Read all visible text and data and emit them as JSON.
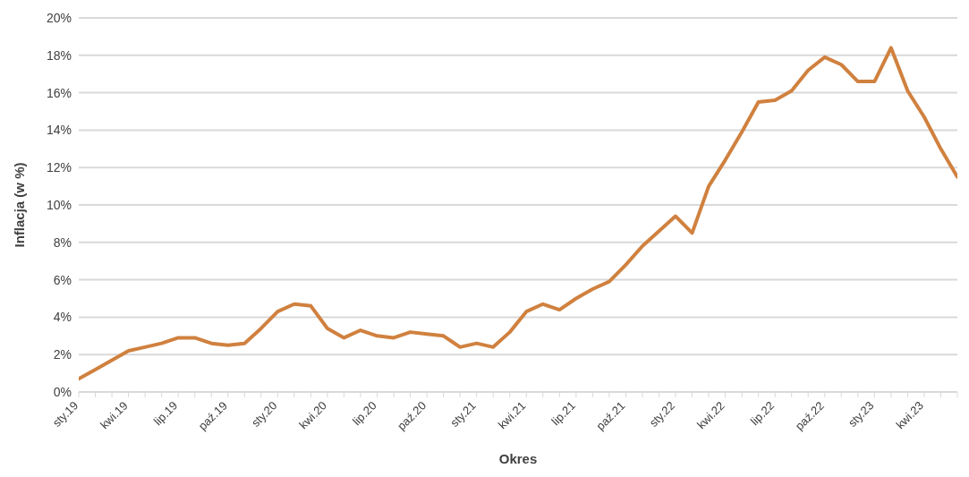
{
  "chart_data": {
    "type": "line",
    "xlabel": "Okres",
    "ylabel": "Inflacja (w %)",
    "categories": [
      "sty.19",
      null,
      null,
      "kwi.19",
      null,
      null,
      "lip.19",
      null,
      null,
      "paź.19",
      null,
      null,
      "sty.20",
      null,
      null,
      "kwi.20",
      null,
      null,
      "lip.20",
      null,
      null,
      "paź.20",
      null,
      null,
      "sty.21",
      null,
      null,
      "kwi.21",
      null,
      null,
      "lip.21",
      null,
      null,
      "paź.21",
      null,
      null,
      "sty.22",
      null,
      null,
      "kwi.22",
      null,
      null,
      "lip.22",
      null,
      null,
      "paź.22",
      null,
      null,
      "sty.23",
      null,
      null,
      "kwi.23",
      null,
      null
    ],
    "series": [
      {
        "color": "#d0813f",
        "values": [
          0.7,
          1.2,
          1.7,
          2.2,
          2.4,
          2.6,
          2.9,
          2.9,
          2.6,
          2.5,
          2.6,
          3.4,
          4.3,
          4.7,
          4.6,
          3.4,
          2.9,
          3.3,
          3.0,
          2.9,
          3.2,
          3.1,
          3.0,
          2.4,
          2.6,
          2.4,
          3.2,
          4.3,
          4.7,
          4.4,
          5.0,
          5.5,
          5.9,
          6.8,
          7.8,
          8.6,
          9.4,
          8.5,
          11.0,
          12.4,
          13.9,
          15.5,
          15.6,
          16.1,
          17.2,
          17.9,
          17.5,
          16.6,
          16.6,
          18.4,
          16.1,
          14.7,
          13.0,
          11.5
        ]
      }
    ],
    "ylim": [
      0,
      20
    ],
    "yticks": [
      {
        "value": 0,
        "label": "0%"
      },
      {
        "value": 2,
        "label": "2%"
      },
      {
        "value": 4,
        "label": "4%"
      },
      {
        "value": 6,
        "label": "6%"
      },
      {
        "value": 8,
        "label": "8%"
      },
      {
        "value": 10,
        "label": "10%"
      },
      {
        "value": 12,
        "label": "12%"
      },
      {
        "value": 14,
        "label": "14%"
      },
      {
        "value": 16,
        "label": "16%"
      },
      {
        "value": 18,
        "label": "18%"
      },
      {
        "value": 20,
        "label": "20%"
      }
    ],
    "grid": "y",
    "marker": "none",
    "line_style": "solid"
  }
}
